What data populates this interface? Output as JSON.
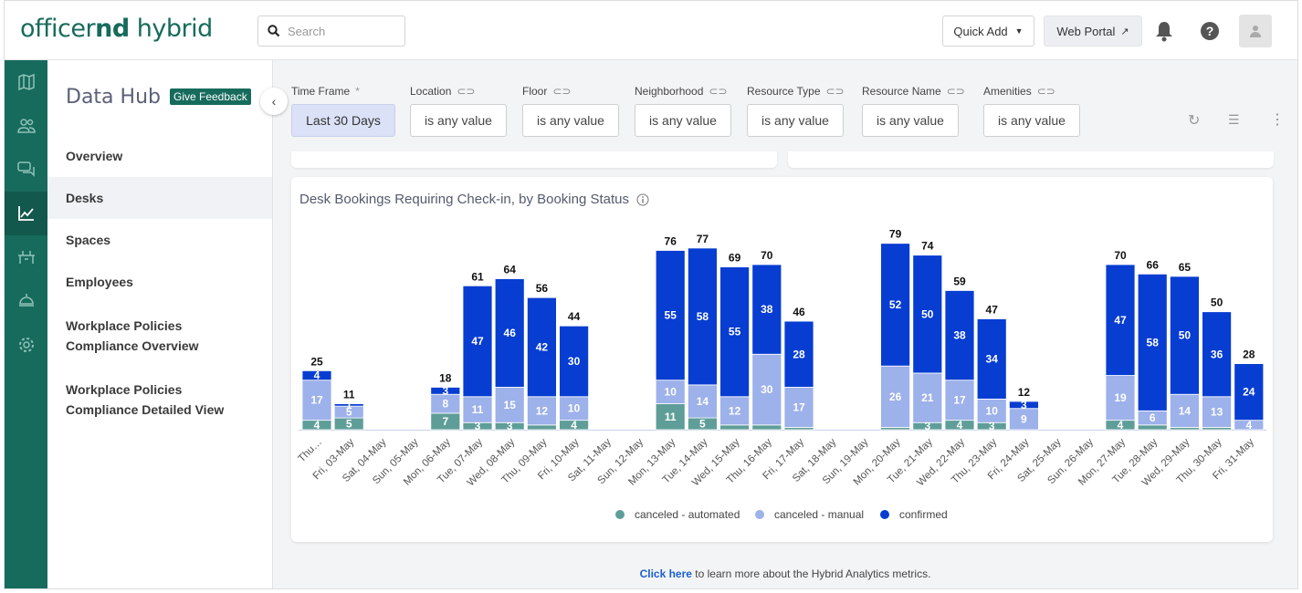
{
  "header": {
    "logo_light": "officer",
    "logo_bold": "nd",
    "logo_rest": " hybrid",
    "search_placeholder": "Search",
    "quick_add": "Quick Add",
    "web_portal": "Web Portal"
  },
  "rail": {
    "icons": [
      "map-icon",
      "users-icon",
      "chat-icon",
      "analytics-icon",
      "desks-icon",
      "reception-bell-icon",
      "settings-icon"
    ]
  },
  "sidebar": {
    "title": "Data Hub",
    "feedback": "Give Feedback",
    "items": [
      {
        "label": "Overview",
        "active": false
      },
      {
        "label": "Desks",
        "active": true
      },
      {
        "label": "Spaces",
        "active": false
      },
      {
        "label": "Employees",
        "active": false
      },
      {
        "label": "Workplace Policies Compliance Overview",
        "active": false
      },
      {
        "label": "Workplace Policies Compliance Detailed View",
        "active": false
      }
    ]
  },
  "filters": [
    {
      "label": "Time Frame",
      "required": "*",
      "value": "Last 30 Days"
    },
    {
      "label": "Location",
      "value": "is any value"
    },
    {
      "label": "Floor",
      "value": "is any value"
    },
    {
      "label": "Neighborhood",
      "value": "is any value"
    },
    {
      "label": "Resource Type",
      "value": "is any value"
    },
    {
      "label": "Resource Name",
      "value": "is any value"
    },
    {
      "label": "Amenities",
      "value": "is any value"
    }
  ],
  "footer": {
    "link": "Click here",
    "text": " to learn more about the Hybrid Analytics metrics."
  },
  "chart_data": {
    "type": "bar",
    "stacked": true,
    "title": "Desk Bookings Requiring Check-in, by Booking Status",
    "categories": [
      "Thu…",
      "Fri, 03-May",
      "Sat, 04-May",
      "Sun, 05-May",
      "Mon, 06-May",
      "Tue, 07-May",
      "Wed, 08-May",
      "Thu, 09-May",
      "Fri, 10-May",
      "Sat, 11-May",
      "Sun, 12-May",
      "Mon, 13-May",
      "Tue, 14-May",
      "Wed, 15-May",
      "Thu, 16-May",
      "Fri, 17-May",
      "Sat, 18-May",
      "Sun, 19-May",
      "Mon, 20-May",
      "Tue, 21-May",
      "Wed, 22-May",
      "Thu, 23-May",
      "Fri, 24-May",
      "Sat, 25-May",
      "Sun, 26-May",
      "Mon, 27-May",
      "Tue, 28-May",
      "Wed, 29-May",
      "Thu, 30-May",
      "Fri, 31-May"
    ],
    "series": [
      {
        "name": "canceled - automated",
        "color": "#5f9e98",
        "values": [
          4,
          5,
          0,
          0,
          7,
          3,
          3,
          2,
          4,
          0,
          0,
          11,
          5,
          2,
          2,
          1,
          0,
          0,
          1,
          3,
          4,
          3,
          0,
          0,
          0,
          4,
          2,
          1,
          1,
          0
        ]
      },
      {
        "name": "canceled - manual",
        "color": "#9db1ea",
        "values": [
          17,
          5,
          0,
          0,
          8,
          11,
          15,
          12,
          10,
          0,
          0,
          10,
          14,
          12,
          30,
          17,
          0,
          0,
          26,
          21,
          17,
          10,
          9,
          0,
          0,
          19,
          6,
          14,
          13,
          4
        ]
      },
      {
        "name": "confirmed",
        "color": "#073dd1",
        "values": [
          4,
          1,
          0,
          0,
          3,
          47,
          46,
          42,
          30,
          0,
          0,
          55,
          58,
          55,
          38,
          28,
          0,
          0,
          52,
          50,
          38,
          34,
          3,
          0,
          0,
          47,
          58,
          50,
          36,
          24
        ]
      }
    ],
    "totals": [
      25,
      11,
      0,
      0,
      18,
      61,
      64,
      56,
      44,
      0,
      0,
      76,
      77,
      69,
      70,
      46,
      0,
      0,
      79,
      74,
      59,
      47,
      12,
      0,
      0,
      70,
      66,
      65,
      50,
      28
    ],
    "ylim": [
      0,
      80
    ],
    "grid": false,
    "legend": "bottom-center"
  }
}
